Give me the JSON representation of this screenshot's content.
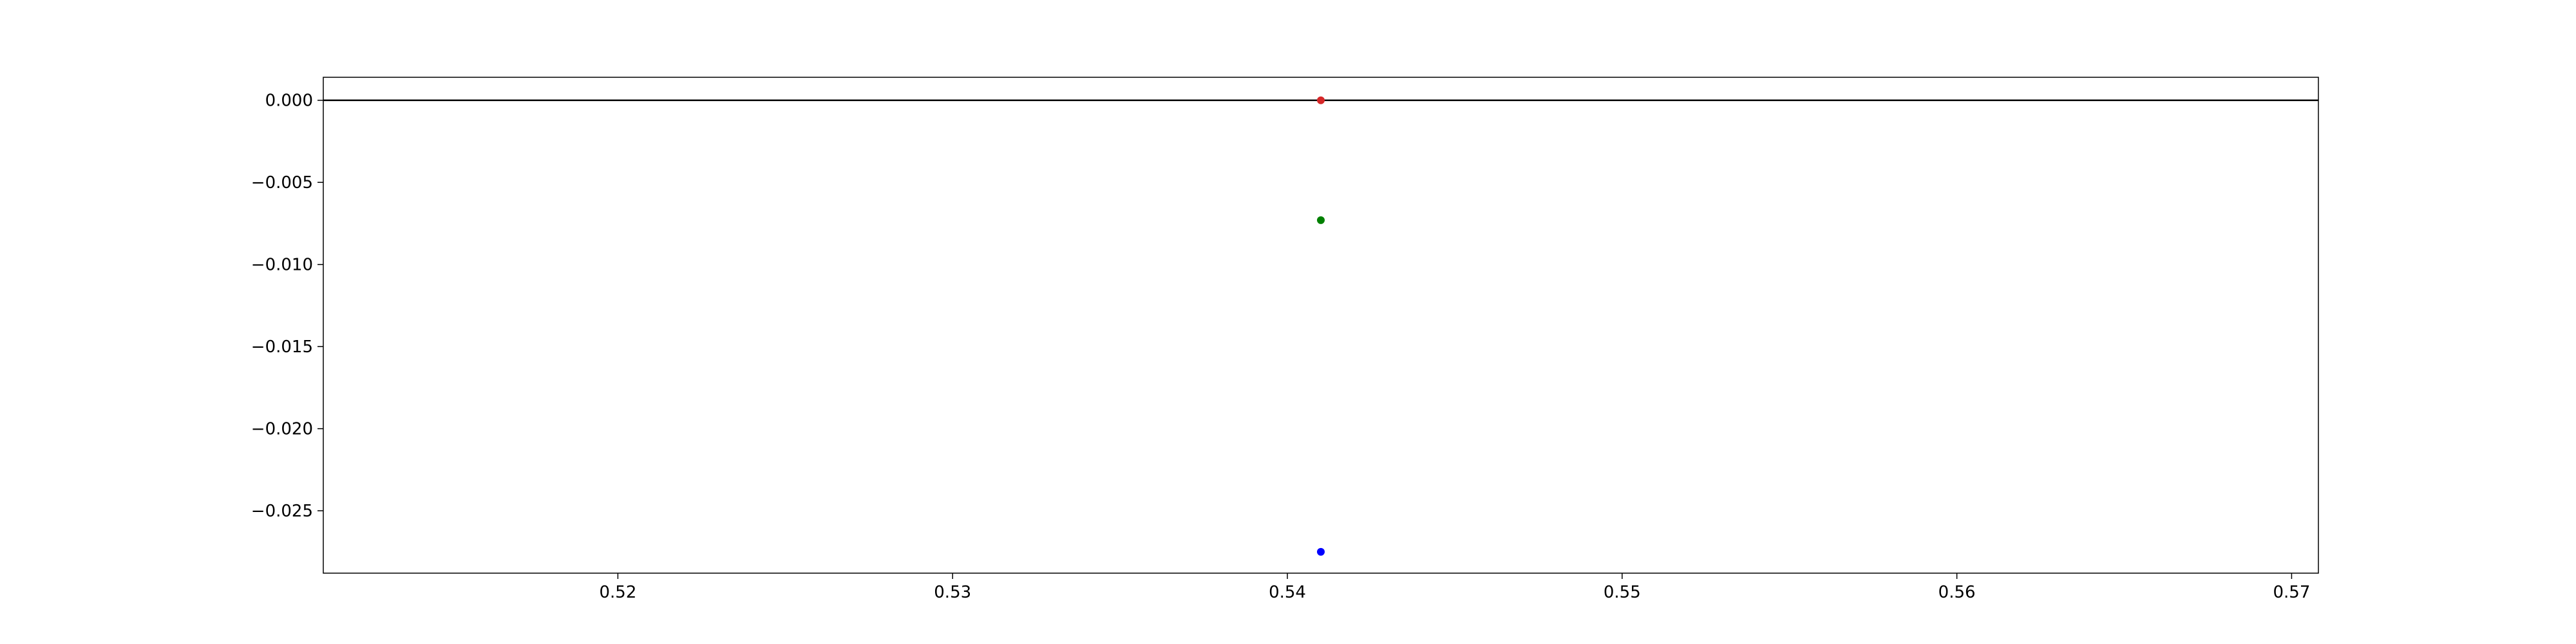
{
  "chart_data": {
    "type": "scatter",
    "title": "",
    "xlabel": "",
    "ylabel": "",
    "xlim": [
      0.5112,
      0.5708
    ],
    "ylim": [
      -0.0288,
      0.0014
    ],
    "grid": false,
    "legend": "none",
    "x_ticks": [
      {
        "value": 0.52,
        "label": "0.52"
      },
      {
        "value": 0.53,
        "label": "0.53"
      },
      {
        "value": 0.54,
        "label": "0.54"
      },
      {
        "value": 0.55,
        "label": "0.55"
      },
      {
        "value": 0.56,
        "label": "0.56"
      },
      {
        "value": 0.57,
        "label": "0.57"
      }
    ],
    "y_ticks": [
      {
        "value": 0.0,
        "label": "0.000"
      },
      {
        "value": -0.005,
        "label": "−0.005"
      },
      {
        "value": -0.01,
        "label": "−0.010"
      },
      {
        "value": -0.015,
        "label": "−0.015"
      },
      {
        "value": -0.02,
        "label": "−0.020"
      },
      {
        "value": -0.025,
        "label": "−0.025"
      }
    ],
    "reference_lines": [
      {
        "orientation": "horizontal",
        "y": 0.0,
        "color": "#000000"
      }
    ],
    "points": [
      {
        "x": 0.541,
        "y": 0.0,
        "color": "#d62728"
      },
      {
        "x": 0.541,
        "y": -0.0073,
        "color": "#008000"
      },
      {
        "x": 0.541,
        "y": -0.0275,
        "color": "#0000ff"
      }
    ]
  }
}
